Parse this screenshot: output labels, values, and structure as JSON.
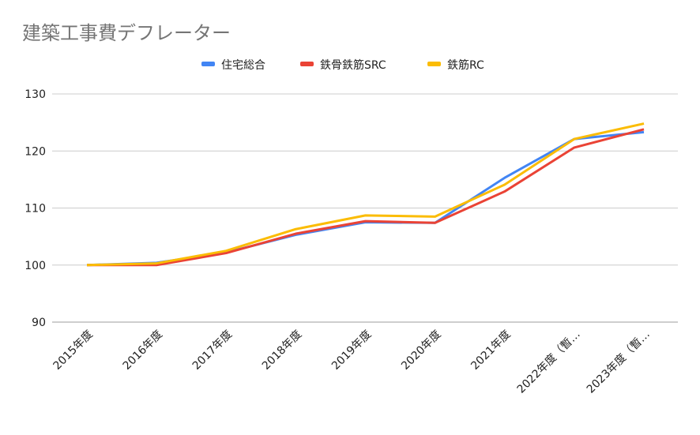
{
  "chart_data": {
    "type": "line",
    "title": "建築工事費デフレーター",
    "xlabel": "",
    "ylabel": "",
    "categories": [
      "2015年度",
      "2016年度",
      "2017年度",
      "2018年度",
      "2019年度",
      "2020年度",
      "2021年度",
      "2022年度（暫…",
      "2023年度（暫…"
    ],
    "ylim": [
      90,
      130
    ],
    "yticks": [
      90,
      100,
      110,
      120,
      130
    ],
    "grid": true,
    "legend_position": "top",
    "series": [
      {
        "name": "住宅総合",
        "color": "#4285f4",
        "values": [
          100,
          100.4,
          102.2,
          105.3,
          107.5,
          107.4,
          115.3,
          122.1,
          123.3
        ]
      },
      {
        "name": "鉄骨鉄筋SRC",
        "color": "#ea4335",
        "values": [
          100,
          100.0,
          102.1,
          105.5,
          107.7,
          107.4,
          112.9,
          120.6,
          123.8
        ]
      },
      {
        "name": "鉄筋RC",
        "color": "#fbbc04",
        "values": [
          100,
          100.3,
          102.5,
          106.3,
          108.7,
          108.5,
          114.1,
          122.1,
          124.8
        ]
      }
    ]
  }
}
